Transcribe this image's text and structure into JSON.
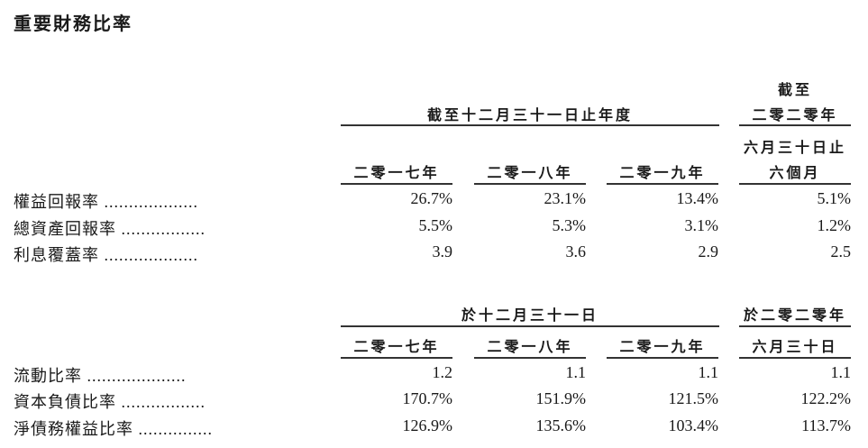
{
  "title": "重要財務比率",
  "section1": {
    "group_header": "截至十二月三十一日止年度",
    "interim_header": [
      "截至",
      "二零二零年",
      "六月三十日止",
      "六個月"
    ],
    "columns": [
      "二零一七年",
      "二零一八年",
      "二零一九年"
    ],
    "rows": [
      {
        "label": "權益回報率",
        "leader": "...................",
        "values": [
          "26.7%",
          "23.1%",
          "13.4%",
          "5.1%"
        ]
      },
      {
        "label": "總資產回報率",
        "leader": ".................",
        "values": [
          "5.5%",
          "5.3%",
          "3.1%",
          "1.2%"
        ]
      },
      {
        "label": "利息覆蓋率",
        "leader": "...................",
        "values": [
          "3.9",
          "3.6",
          "2.9",
          "2.5"
        ]
      }
    ]
  },
  "section2": {
    "group_header": "於十二月三十一日",
    "interim_header": [
      "於二零二零年",
      "六月三十日"
    ],
    "columns": [
      "二零一七年",
      "二零一八年",
      "二零一九年"
    ],
    "rows": [
      {
        "label": "流動比率",
        "leader": "....................",
        "values": [
          "1.2",
          "1.1",
          "1.1",
          "1.1"
        ]
      },
      {
        "label": "資本負債比率",
        "leader": ".................",
        "values": [
          "170.7%",
          "151.9%",
          "121.5%",
          "122.2%"
        ]
      },
      {
        "label": "淨債務權益比率",
        "leader": "...............",
        "values": [
          "126.9%",
          "135.6%",
          "103.4%",
          "113.7%"
        ]
      }
    ]
  }
}
